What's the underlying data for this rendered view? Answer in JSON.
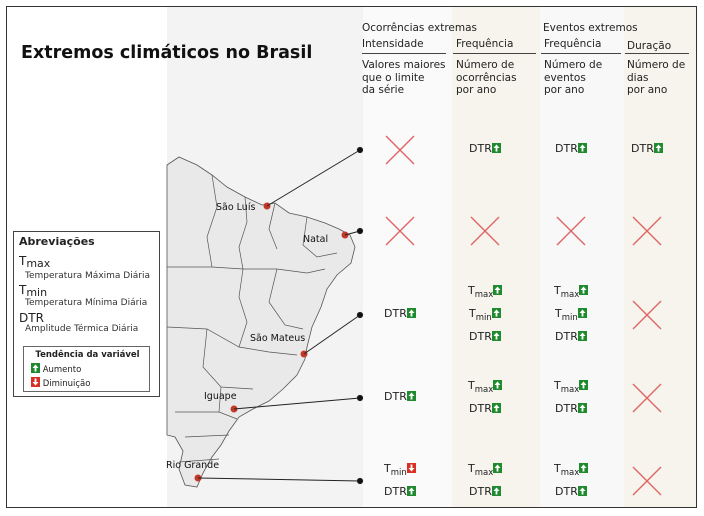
{
  "title": "Extremos climáticos no Brasil",
  "header": {
    "group1": "Ocorrências extremas",
    "group2": "Eventos extremos",
    "columns": [
      {
        "label": "Intensidade",
        "sub": [
          "Valores maiores",
          "que o limite",
          "da série"
        ]
      },
      {
        "label": "Frequência",
        "sub": [
          "Número de",
          "ocorrências",
          "por ano"
        ]
      },
      {
        "label": "Frequência",
        "sub": [
          "Número de",
          "eventos",
          "por ano"
        ]
      },
      {
        "label": "Duração",
        "sub": [
          "Número de",
          "dias",
          "por ano"
        ]
      }
    ]
  },
  "cities": [
    "São Luís",
    "Natal",
    "São Mateus",
    "Iguape",
    "Rio Grande"
  ],
  "legend": {
    "title": "Abreviações",
    "items": [
      {
        "code": "T",
        "sub": "max",
        "desc": "Temperatura Máxima Diária"
      },
      {
        "code": "T",
        "sub": "min",
        "desc": "Temperatura Mínima Diária"
      },
      {
        "code": "DTR",
        "sub": "",
        "desc": "Amplitude Térmica Diária"
      }
    ],
    "trend_title": "Tendência da variável",
    "increase": "Aumento",
    "decrease": "Diminuição"
  },
  "colors": {
    "increase": "#1f8a2e",
    "decrease": "#d93025",
    "cross": "#e06666",
    "city_dot": "#c0392b"
  },
  "table": {
    "rows": [
      {
        "city": "São Luís",
        "cells": [
          {
            "cross": true,
            "entries": []
          },
          {
            "cross": false,
            "entries": [
              {
                "var": "DTR",
                "sub": "",
                "trend": "up"
              }
            ]
          },
          {
            "cross": false,
            "entries": [
              {
                "var": "DTR",
                "sub": "",
                "trend": "up"
              }
            ]
          },
          {
            "cross": false,
            "entries": [
              {
                "var": "DTR",
                "sub": "",
                "trend": "up"
              }
            ]
          }
        ]
      },
      {
        "city": "Natal",
        "cells": [
          {
            "cross": true,
            "entries": []
          },
          {
            "cross": true,
            "entries": []
          },
          {
            "cross": true,
            "entries": []
          },
          {
            "cross": true,
            "entries": []
          }
        ]
      },
      {
        "city": "São Mateus",
        "cells": [
          {
            "cross": false,
            "entries": [
              {
                "var": "DTR",
                "sub": "",
                "trend": "up"
              }
            ]
          },
          {
            "cross": false,
            "entries": [
              {
                "var": "T",
                "sub": "max",
                "trend": "up"
              },
              {
                "var": "T",
                "sub": "min",
                "trend": "up"
              },
              {
                "var": "DTR",
                "sub": "",
                "trend": "up"
              }
            ]
          },
          {
            "cross": false,
            "entries": [
              {
                "var": "T",
                "sub": "max",
                "trend": "up"
              },
              {
                "var": "T",
                "sub": "min",
                "trend": "up"
              },
              {
                "var": "DTR",
                "sub": "",
                "trend": "up"
              }
            ]
          },
          {
            "cross": true,
            "entries": []
          }
        ]
      },
      {
        "city": "Iguape",
        "cells": [
          {
            "cross": false,
            "entries": [
              {
                "var": "DTR",
                "sub": "",
                "trend": "up"
              }
            ]
          },
          {
            "cross": false,
            "entries": [
              {
                "var": "T",
                "sub": "max",
                "trend": "up"
              },
              {
                "var": "DTR",
                "sub": "",
                "trend": "up"
              }
            ]
          },
          {
            "cross": false,
            "entries": [
              {
                "var": "T",
                "sub": "max",
                "trend": "up"
              },
              {
                "var": "DTR",
                "sub": "",
                "trend": "up"
              }
            ]
          },
          {
            "cross": true,
            "entries": []
          }
        ]
      },
      {
        "city": "Rio Grande",
        "cells": [
          {
            "cross": false,
            "entries": [
              {
                "var": "T",
                "sub": "min",
                "trend": "down"
              },
              {
                "var": "DTR",
                "sub": "",
                "trend": "up"
              }
            ]
          },
          {
            "cross": false,
            "entries": [
              {
                "var": "T",
                "sub": "max",
                "trend": "up"
              },
              {
                "var": "DTR",
                "sub": "",
                "trend": "up"
              }
            ]
          },
          {
            "cross": false,
            "entries": [
              {
                "var": "T",
                "sub": "max",
                "trend": "up"
              },
              {
                "var": "DTR",
                "sub": "",
                "trend": "up"
              }
            ]
          },
          {
            "cross": true,
            "entries": []
          }
        ]
      }
    ]
  }
}
